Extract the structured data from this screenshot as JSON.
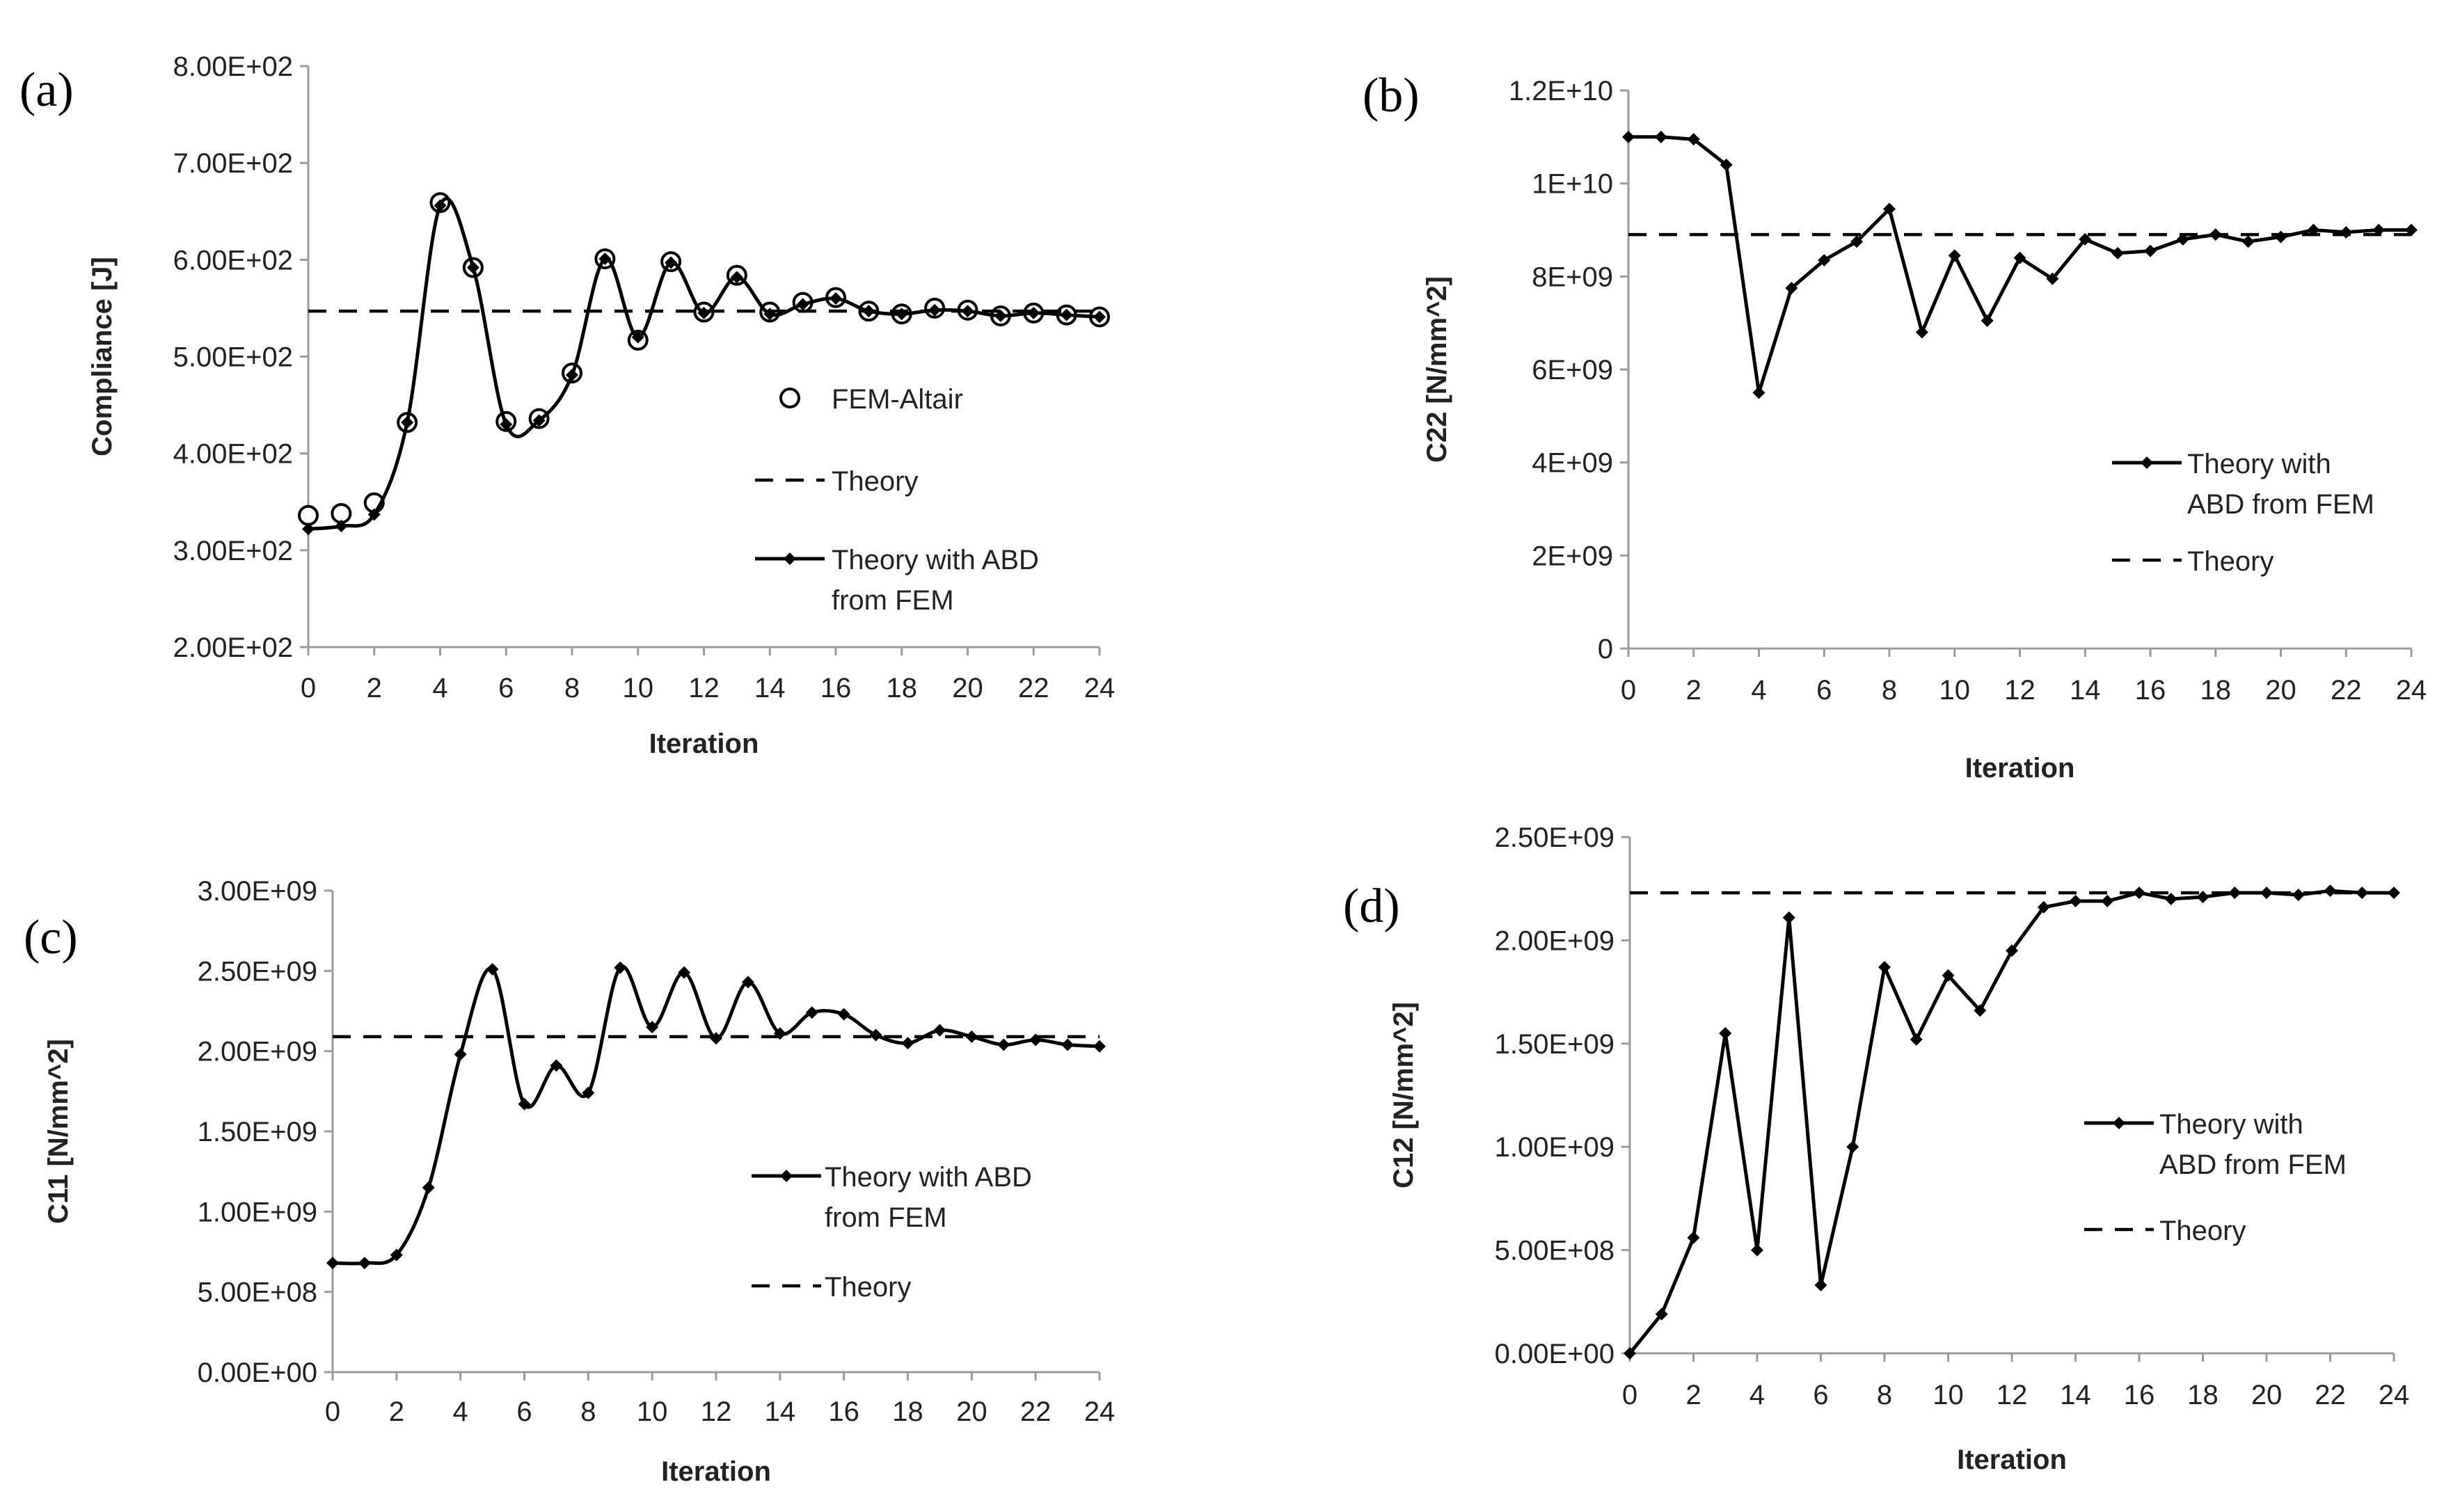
{
  "figure": {
    "panel_labels": [
      "(a)",
      "(b)",
      "(c)",
      "(d)"
    ]
  },
  "chart_data": [
    {
      "panel": "(a)",
      "type": "line",
      "xlabel": "Iteration",
      "ylabel": "Compliance [J]",
      "xlim": [
        0,
        24
      ],
      "ylim": [
        200,
        800
      ],
      "xticks": [
        "0",
        "2",
        "4",
        "6",
        "8",
        "10",
        "12",
        "14",
        "16",
        "18",
        "20",
        "22",
        "24"
      ],
      "yticks": [
        "2.00E+02",
        "3.00E+02",
        "4.00E+02",
        "5.00E+02",
        "6.00E+02",
        "7.00E+02",
        "8.00E+02"
      ],
      "legend_position": "center-right",
      "series": [
        {
          "name": "FEM-Altair",
          "style": "circles",
          "x": [
            0,
            1,
            2,
            3,
            4,
            5,
            6,
            7,
            8,
            9,
            10,
            11,
            12,
            13,
            14,
            15,
            16,
            17,
            18,
            19,
            20,
            21,
            22,
            23,
            24
          ],
          "values": [
            336,
            338,
            349,
            432,
            659,
            592,
            433,
            436,
            483,
            601,
            517,
            598,
            546,
            584,
            546,
            556,
            561,
            547,
            544,
            550,
            548,
            542,
            545,
            543,
            541
          ]
        },
        {
          "name": "Theory",
          "style": "dashed",
          "x": [
            0,
            24
          ],
          "values": [
            547,
            547
          ]
        },
        {
          "name": "Theory with ABD from FEM",
          "style": "smooth-diamond",
          "legend_lines": [
            "Theory with ABD",
            "from FEM"
          ],
          "x": [
            0,
            1,
            2,
            3,
            4,
            5,
            6,
            7,
            8,
            9,
            10,
            11,
            12,
            13,
            14,
            15,
            16,
            17,
            18,
            19,
            20,
            21,
            22,
            23,
            24
          ],
          "values": [
            322,
            325,
            337,
            432,
            656,
            592,
            430,
            434,
            481,
            601,
            520,
            597,
            545,
            582,
            544,
            554,
            560,
            547,
            544,
            548,
            547,
            542,
            545,
            543,
            541
          ]
        }
      ]
    },
    {
      "panel": "(b)",
      "type": "line",
      "xlabel": "Iteration",
      "ylabel": "C22 [N/mm^2]",
      "xlim": [
        0,
        24
      ],
      "ylim": [
        0,
        12000000000
      ],
      "xticks": [
        "0",
        "2",
        "4",
        "6",
        "8",
        "10",
        "12",
        "14",
        "16",
        "18",
        "20",
        "22",
        "24"
      ],
      "yticks": [
        "0",
        "2E+09",
        "4E+09",
        "6E+09",
        "8E+09",
        "1E+10",
        "1.2E+10"
      ],
      "legend_position": "right",
      "series": [
        {
          "name": "Theory with ABD from FEM",
          "style": "line-diamond",
          "legend_lines": [
            "Theory with",
            "ABD from FEM"
          ],
          "x": [
            0,
            1,
            2,
            3,
            4,
            5,
            6,
            7,
            8,
            9,
            10,
            11,
            12,
            13,
            14,
            15,
            16,
            17,
            18,
            19,
            20,
            21,
            22,
            23,
            24
          ],
          "values": [
            11000000000,
            11000000000,
            10950000000,
            10400000000,
            5500000000,
            7750000000,
            8350000000,
            8750000000,
            9450000000,
            6800000000,
            8450000000,
            7050000000,
            8400000000,
            7950000000,
            8800000000,
            8500000000,
            8550000000,
            8800000000,
            8900000000,
            8750000000,
            8850000000,
            9000000000,
            8950000000,
            9000000000,
            9000000000
          ]
        },
        {
          "name": "Theory",
          "style": "dashed",
          "x": [
            0,
            24
          ],
          "values": [
            8900000000,
            8900000000
          ]
        }
      ]
    },
    {
      "panel": "(c)",
      "type": "line",
      "xlabel": "Iteration",
      "ylabel": "C11 [N/mm^2]",
      "xlim": [
        0,
        24
      ],
      "ylim": [
        0,
        3000000000
      ],
      "xticks": [
        "0",
        "2",
        "4",
        "6",
        "8",
        "10",
        "12",
        "14",
        "16",
        "18",
        "20",
        "22",
        "24"
      ],
      "yticks": [
        "0.00E+00",
        "5.00E+08",
        "1.00E+09",
        "1.50E+09",
        "2.00E+09",
        "2.50E+09",
        "3.00E+09"
      ],
      "legend_position": "right",
      "series": [
        {
          "name": "Theory with ABD from FEM",
          "style": "smooth-diamond",
          "legend_lines": [
            "Theory with ABD",
            "from FEM"
          ],
          "x": [
            0,
            1,
            2,
            3,
            4,
            5,
            6,
            7,
            8,
            9,
            10,
            11,
            12,
            13,
            14,
            15,
            16,
            17,
            18,
            19,
            20,
            21,
            22,
            23,
            24
          ],
          "values": [
            680000000,
            680000000,
            730000000,
            1150000000,
            1980000000,
            2510000000,
            1670000000,
            1910000000,
            1740000000,
            2520000000,
            2150000000,
            2490000000,
            2080000000,
            2430000000,
            2110000000,
            2240000000,
            2230000000,
            2100000000,
            2050000000,
            2130000000,
            2090000000,
            2040000000,
            2070000000,
            2040000000,
            2030000000
          ]
        },
        {
          "name": "Theory",
          "style": "dashed",
          "x": [
            0,
            24
          ],
          "values": [
            2090000000,
            2090000000
          ]
        }
      ]
    },
    {
      "panel": "(d)",
      "type": "line",
      "xlabel": "Iteration",
      "ylabel": "C12 [N/mm^2]",
      "xlim": [
        0,
        24
      ],
      "ylim": [
        0,
        2500000000
      ],
      "xticks": [
        "0",
        "2",
        "4",
        "6",
        "8",
        "10",
        "12",
        "14",
        "16",
        "18",
        "20",
        "22",
        "24"
      ],
      "yticks": [
        "0.00E+00",
        "5.00E+08",
        "1.00E+09",
        "1.50E+09",
        "2.00E+09",
        "2.50E+09"
      ],
      "legend_position": "right",
      "series": [
        {
          "name": "Theory with ABD from FEM",
          "style": "line-diamond",
          "legend_lines": [
            "Theory with",
            "ABD from FEM"
          ],
          "x": [
            0,
            1,
            2,
            3,
            4,
            5,
            6,
            7,
            8,
            9,
            10,
            11,
            12,
            13,
            14,
            15,
            16,
            17,
            18,
            19,
            20,
            21,
            22,
            23,
            24
          ],
          "values": [
            0,
            190000000,
            560000000,
            1550000000,
            500000000,
            2110000000,
            330000000,
            1000000000,
            1870000000,
            1520000000,
            1830000000,
            1660000000,
            1950000000,
            2160000000,
            2190000000,
            2190000000,
            2230000000,
            2200000000,
            2210000000,
            2230000000,
            2230000000,
            2220000000,
            2240000000,
            2230000000,
            2230000000
          ]
        },
        {
          "name": "Theory",
          "style": "dashed",
          "x": [
            0,
            24
          ],
          "values": [
            2230000000,
            2230000000
          ]
        }
      ]
    }
  ]
}
